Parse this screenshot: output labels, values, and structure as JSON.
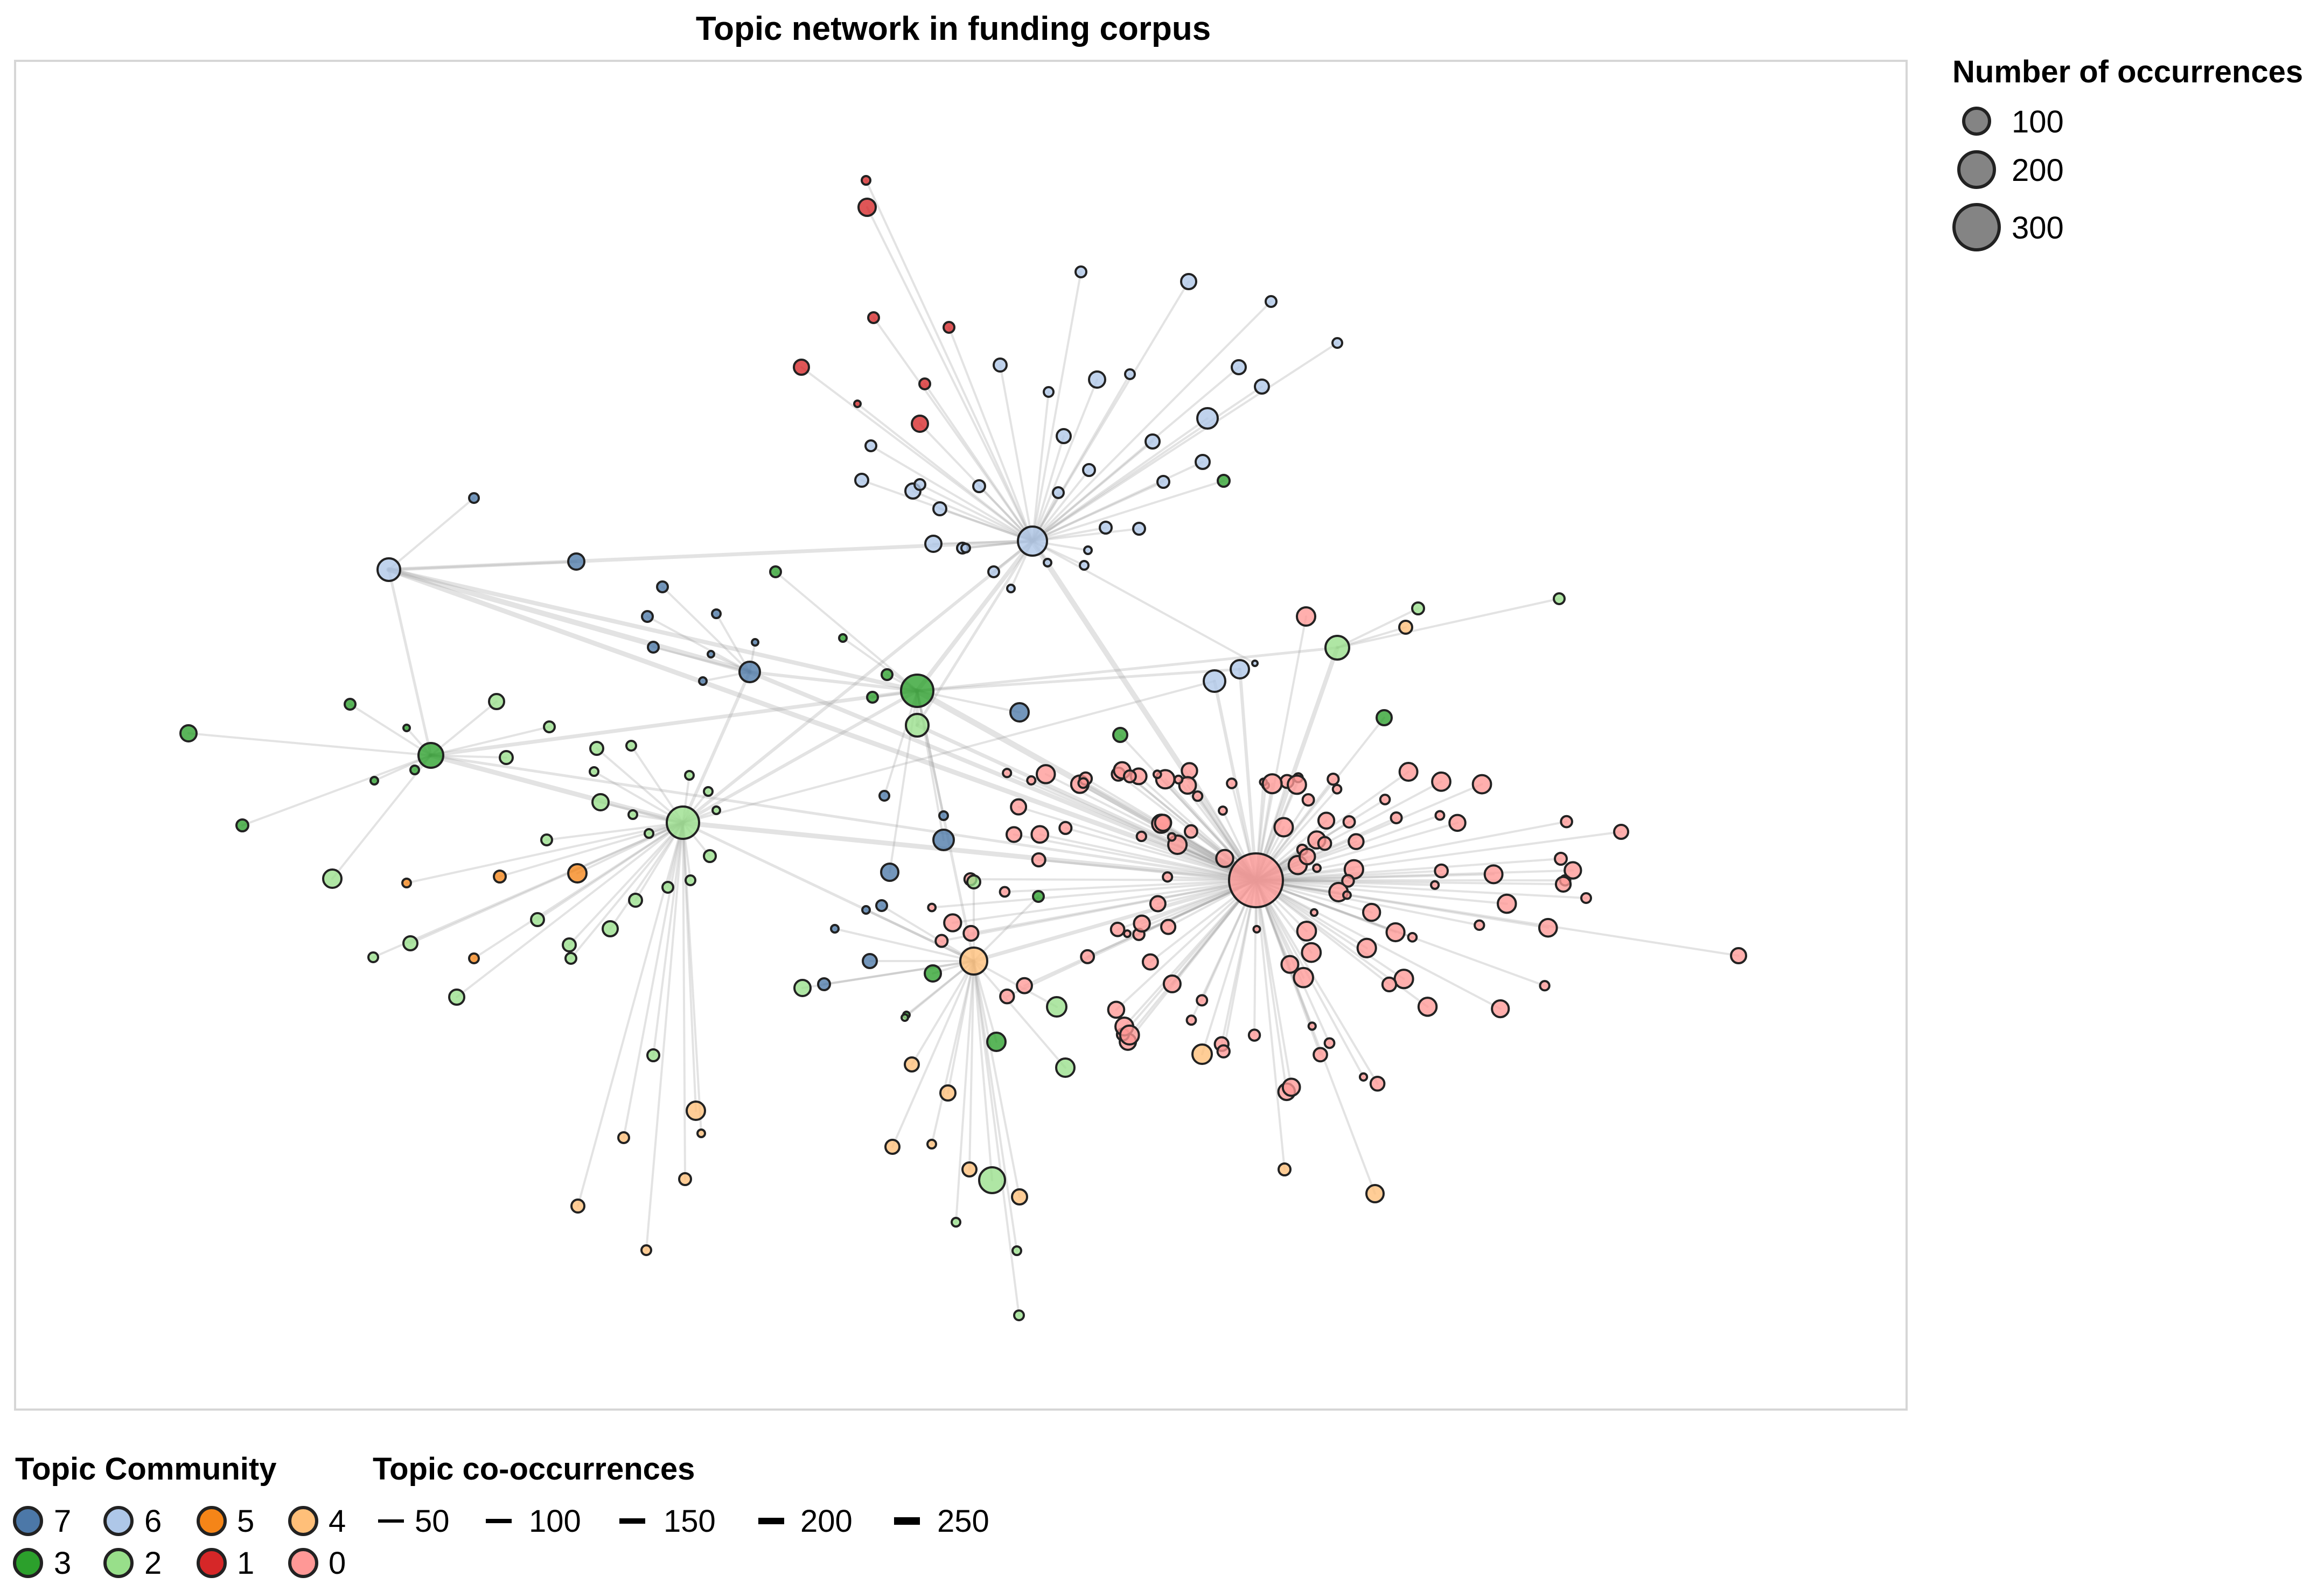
{
  "title": "Topic network in funding corpus",
  "size_legend": {
    "title": "Number of occurrences",
    "items": [
      {
        "label": "100",
        "value": 100
      },
      {
        "label": "200",
        "value": 200
      },
      {
        "label": "300",
        "value": 300
      }
    ]
  },
  "community_legend": {
    "title": "Topic Community",
    "items": [
      {
        "label": "7",
        "color": "#4c78a8"
      },
      {
        "label": "6",
        "color": "#aec7e8"
      },
      {
        "label": "5",
        "color": "#f58518"
      },
      {
        "label": "4",
        "color": "#ffbf79"
      },
      {
        "label": "3",
        "color": "#2ca02c"
      },
      {
        "label": "2",
        "color": "#98df8a"
      },
      {
        "label": "1",
        "color": "#d62728"
      },
      {
        "label": "0",
        "color": "#ff9896"
      }
    ]
  },
  "edge_legend": {
    "title": "Topic co-occurrences",
    "items": [
      {
        "label": "50",
        "value": 50
      },
      {
        "label": "100",
        "value": 100
      },
      {
        "label": "150",
        "value": 150
      },
      {
        "label": "200",
        "value": 200
      },
      {
        "label": "250",
        "value": 250
      }
    ]
  }
}
